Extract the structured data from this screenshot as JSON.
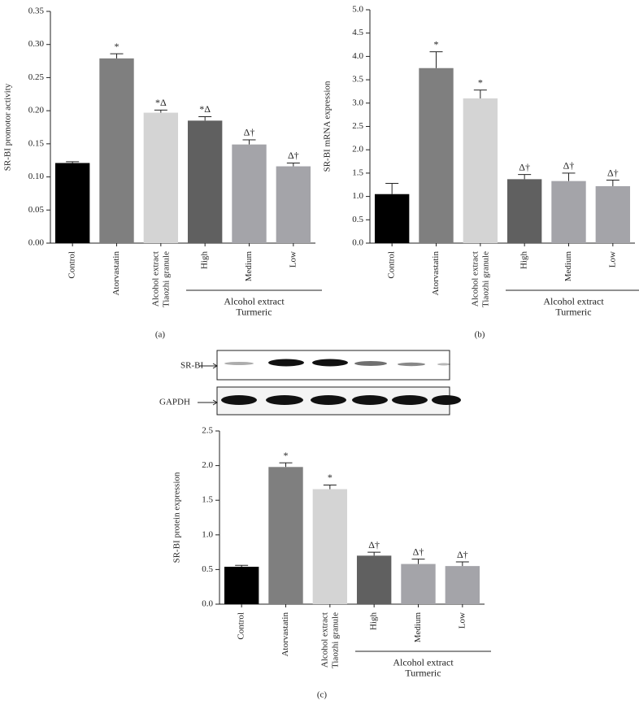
{
  "chart_data": [
    {
      "type": "bar",
      "panel": "(a)",
      "y_label": "SR-BI promotor activity",
      "categories": [
        "Control",
        "Atorvastatin",
        "Alcohol extract\nTiaozhi granule",
        "High",
        "Medium",
        "Low"
      ],
      "group_label": "Alcohol extract\nTurmeric",
      "values": [
        0.121,
        0.279,
        0.197,
        0.185,
        0.149,
        0.116
      ],
      "errors": [
        0.002,
        0.007,
        0.004,
        0.006,
        0.007,
        0.005
      ],
      "annotations": [
        null,
        "*",
        "*Δ",
        "*Δ",
        "Δ†",
        "Δ†"
      ],
      "colors": [
        "#000000",
        "#7f7f7f",
        "#d4d4d4",
        "#606060",
        "#a4a4a9",
        "#a4a4a9"
      ],
      "ylim": [
        0,
        0.35
      ],
      "yticks": [
        {
          "value": 0,
          "label": "0.00"
        },
        {
          "value": 0.05,
          "label": "0.05"
        },
        {
          "value": 0.1,
          "label": "0.10"
        },
        {
          "value": 0.15,
          "label": "0.15"
        },
        {
          "value": 0.2,
          "label": "0.20"
        },
        {
          "value": 0.25,
          "label": "0.25"
        },
        {
          "value": 0.3,
          "label": "0.30"
        },
        {
          "value": 0.35,
          "label": "0.35"
        }
      ]
    },
    {
      "type": "bar",
      "panel": "(b)",
      "y_label": "SR-BI mRNA expression",
      "categories": [
        "Control",
        "Atorvastatin",
        "Alcohol extract\nTiaozhi granule",
        "High",
        "Medium",
        "Low"
      ],
      "group_label": "Alcohol extract\nTurmeric",
      "values": [
        1.05,
        3.75,
        3.1,
        1.37,
        1.33,
        1.22
      ],
      "errors": [
        0.23,
        0.35,
        0.18,
        0.1,
        0.17,
        0.13
      ],
      "annotations": [
        null,
        "*",
        "*",
        "Δ†",
        "Δ†",
        "Δ†"
      ],
      "colors": [
        "#000000",
        "#7f7f7f",
        "#d4d4d4",
        "#606060",
        "#a4a4a9",
        "#a4a4a9"
      ],
      "ylim": [
        0,
        5
      ],
      "yticks": [
        {
          "value": 0,
          "label": "0.0"
        },
        {
          "value": 0.5,
          "label": "0.5"
        },
        {
          "value": 1,
          "label": "1.0"
        },
        {
          "value": 1.5,
          "label": "1.5"
        },
        {
          "value": 2,
          "label": "2.0"
        },
        {
          "value": 2.5,
          "label": "2.5"
        },
        {
          "value": 3,
          "label": "3.0"
        },
        {
          "value": 3.5,
          "label": "3.5"
        },
        {
          "value": 4,
          "label": "4.0"
        },
        {
          "value": 4.5,
          "label": "4.5"
        },
        {
          "value": 5,
          "label": "5.0"
        }
      ]
    },
    {
      "type": "bar",
      "panel": "(c)",
      "y_label": "SR-BI protein expression",
      "categories": [
        "Control",
        "Atorvastatin",
        "Alcohol extract\nTiaozhi granule",
        "High",
        "Medium",
        "Low"
      ],
      "group_label": "Alcohol extract\nTurmeric",
      "values": [
        0.54,
        1.98,
        1.66,
        0.7,
        0.58,
        0.55
      ],
      "errors": [
        0.02,
        0.06,
        0.06,
        0.05,
        0.07,
        0.06
      ],
      "annotations": [
        null,
        "*",
        "*",
        "Δ†",
        "Δ†",
        "Δ†"
      ],
      "colors": [
        "#000000",
        "#7f7f7f",
        "#d4d4d4",
        "#606060",
        "#a4a4a9",
        "#a4a4a9"
      ],
      "ylim": [
        0,
        2.5
      ],
      "yticks": [
        {
          "value": 0,
          "label": "0.0"
        },
        {
          "value": 0.5,
          "label": "0.5"
        },
        {
          "value": 1,
          "label": "1.0"
        },
        {
          "value": 1.5,
          "label": "1.5"
        },
        {
          "value": 2,
          "label": "2.0"
        },
        {
          "value": 2.5,
          "label": "2.5"
        }
      ]
    }
  ],
  "blot": {
    "labels": [
      "SR-BI",
      "GAPDH"
    ]
  }
}
